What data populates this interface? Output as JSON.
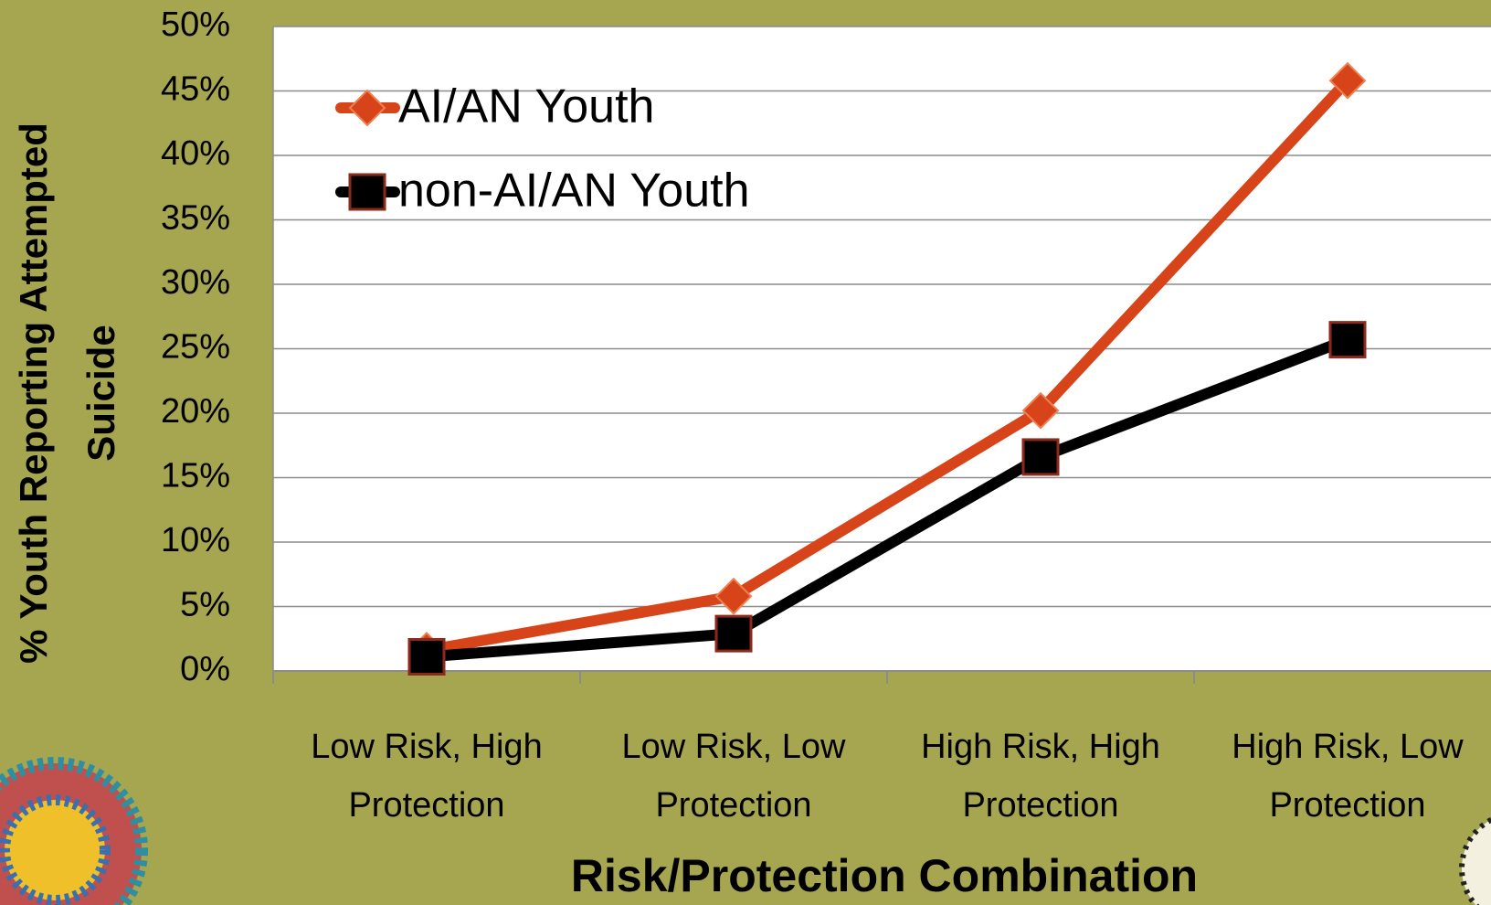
{
  "chart_data": {
    "type": "line",
    "x_label": "Risk/Protection Combination",
    "y_label": [
      "% Youth Reporting Attempted",
      "Suicide"
    ],
    "categories": [
      "Low Risk, High Protection",
      "Low Risk, Low Protection",
      "High Risk, High Protection",
      "High Risk, Low Protection"
    ],
    "series": [
      {
        "name": "AI/AN Youth",
        "color": "#d8441a",
        "marker": "diamond",
        "values": [
          1.6,
          5.8,
          20.2,
          45.8
        ]
      },
      {
        "name": "non-AI/AN Youth",
        "color": "#000000",
        "marker": "square",
        "values": [
          1.1,
          2.9,
          16.6,
          25.7
        ]
      }
    ],
    "ylim": [
      0,
      50
    ],
    "yticks": [
      {
        "value": 0,
        "label": "0%"
      },
      {
        "value": 5,
        "label": "5%"
      },
      {
        "value": 10,
        "label": "10%"
      },
      {
        "value": 15,
        "label": "15%"
      },
      {
        "value": 20,
        "label": "20%"
      },
      {
        "value": 25,
        "label": "25%"
      },
      {
        "value": 30,
        "label": "30%"
      },
      {
        "value": 35,
        "label": "35%"
      },
      {
        "value": 40,
        "label": "40%"
      },
      {
        "value": 45,
        "label": "45%"
      },
      {
        "value": 50,
        "label": "50%"
      }
    ],
    "grid": true,
    "legend": "top-left"
  }
}
